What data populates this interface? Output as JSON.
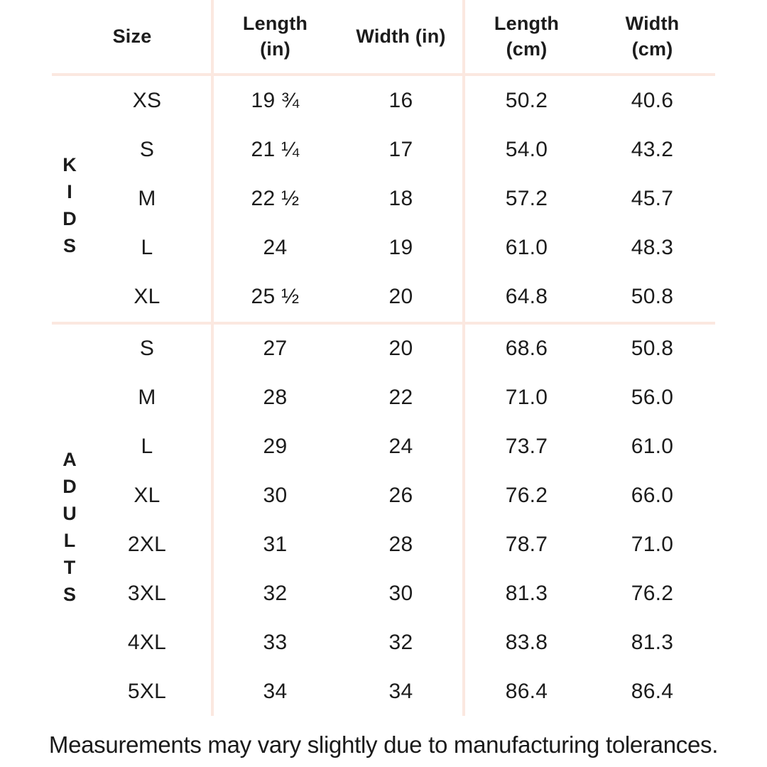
{
  "colors": {
    "background": "#ffffff",
    "divider": "#fbe8e0",
    "text": "#1c1c1c"
  },
  "header_display": {
    "size": {
      "lines": [
        "Size"
      ]
    },
    "length_in": {
      "lines": [
        "Length",
        "(in)"
      ]
    },
    "width_in": {
      "lines": [
        "Width (in)"
      ]
    },
    "length_cm": {
      "lines": [
        "Length",
        "(cm)"
      ]
    },
    "width_cm": {
      "lines": [
        "Width",
        "(cm)"
      ]
    }
  },
  "chart_data": {
    "type": "table",
    "columns": [
      "Size",
      "Length (in)",
      "Width (in)",
      "Length (cm)",
      "Width (cm)"
    ],
    "row_groups": [
      {
        "group": "KIDS",
        "rows": [
          [
            "XS",
            "19 ¾",
            "16",
            "50.2",
            "40.6"
          ],
          [
            "S",
            "21 ¼",
            "17",
            "54.0",
            "43.2"
          ],
          [
            "M",
            "22 ½",
            "18",
            "57.2",
            "45.7"
          ],
          [
            "L",
            "24",
            "19",
            "61.0",
            "48.3"
          ],
          [
            "XL",
            "25 ½",
            "20",
            "64.8",
            "50.8"
          ]
        ]
      },
      {
        "group": "ADULTS",
        "rows": [
          [
            "S",
            "27",
            "20",
            "68.6",
            "50.8"
          ],
          [
            "M",
            "28",
            "22",
            "71.0",
            "56.0"
          ],
          [
            "L",
            "29",
            "24",
            "73.7",
            "61.0"
          ],
          [
            "XL",
            "30",
            "26",
            "76.2",
            "66.0"
          ],
          [
            "2XL",
            "31",
            "28",
            "78.7",
            "71.0"
          ],
          [
            "3XL",
            "32",
            "30",
            "81.3",
            "76.2"
          ],
          [
            "4XL",
            "33",
            "32",
            "83.8",
            "81.3"
          ],
          [
            "5XL",
            "34",
            "34",
            "86.4",
            "86.4"
          ]
        ]
      }
    ],
    "footnote": "Measurements may vary slightly due to manufacturing tolerances."
  }
}
